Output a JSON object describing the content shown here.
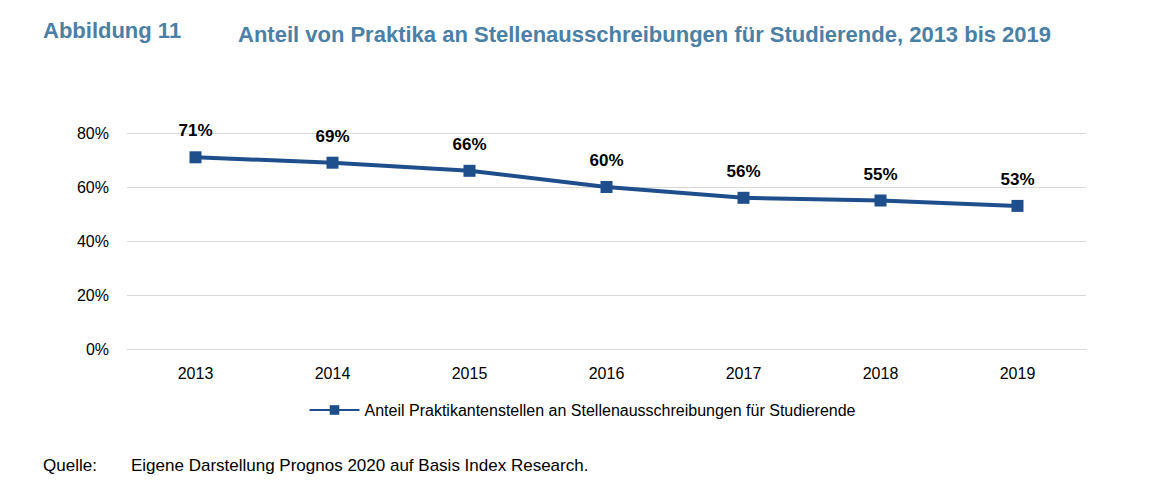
{
  "chart_data": {
    "type": "line",
    "figure_label": "Abbildung 11",
    "title": "Anteil von Praktika an Stellenausschreibungen für Studierende, 2013 bis 2019",
    "source_label": "Quelle:",
    "source": "Eigene Darstellung Prognos 2020 auf Basis Index Research.",
    "categories": [
      "2013",
      "2014",
      "2015",
      "2016",
      "2017",
      "2018",
      "2019"
    ],
    "series": [
      {
        "name": "Anteil Praktikantenstellen an Stellenausschreibungen für Studierende",
        "color": "#1f4e8c",
        "marker": "square",
        "line_style": "solid",
        "values": [
          71,
          69,
          66,
          60,
          56,
          55,
          53
        ],
        "value_labels": [
          "71%",
          "69%",
          "66%",
          "60%",
          "56%",
          "55%",
          "53%"
        ]
      }
    ],
    "ylim": [
      0,
      80
    ],
    "yticks": [
      {
        "value": 0,
        "label": "0%"
      },
      {
        "value": 20,
        "label": "20%"
      },
      {
        "value": 40,
        "label": "40%"
      },
      {
        "value": 60,
        "label": "60%"
      },
      {
        "value": 80,
        "label": "80%"
      }
    ],
    "grid": true,
    "legend": "bottom",
    "data_labels": true
  }
}
